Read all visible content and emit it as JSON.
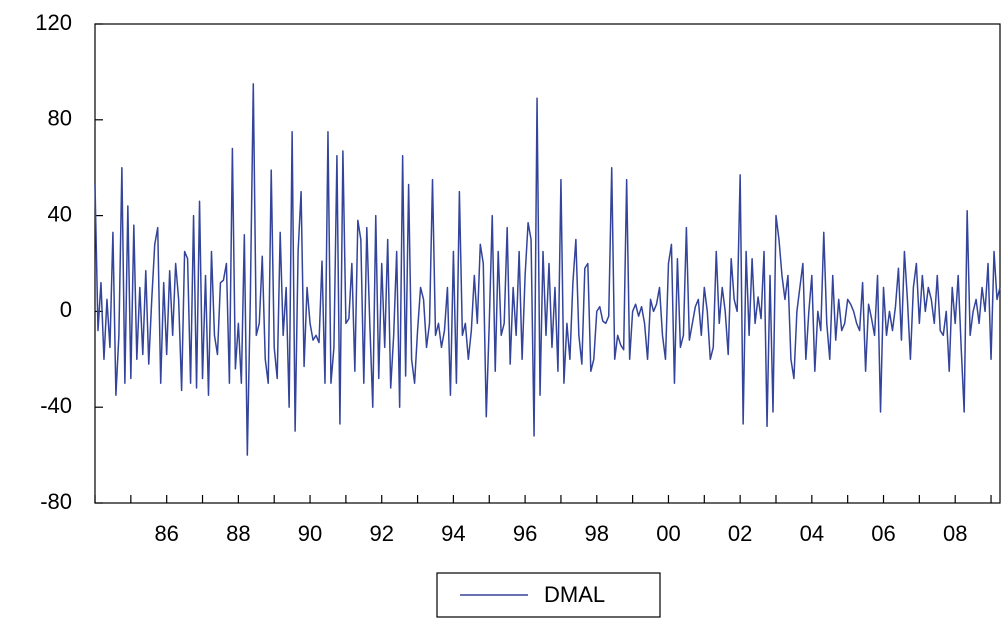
{
  "chart_data": {
    "type": "line",
    "categories": [
      null,
      null,
      null,
      null,
      null,
      null,
      null,
      null,
      null,
      null,
      null,
      null,
      null,
      null,
      null,
      null,
      null,
      null,
      null,
      null,
      null,
      null,
      null,
      null,
      "86",
      null,
      null,
      null,
      null,
      null,
      null,
      null,
      null,
      null,
      null,
      null,
      null,
      null,
      null,
      null,
      null,
      null,
      null,
      null,
      null,
      null,
      null,
      null,
      "88",
      null,
      null,
      null,
      null,
      null,
      null,
      null,
      null,
      null,
      null,
      null,
      null,
      null,
      null,
      null,
      null,
      null,
      null,
      null,
      null,
      null,
      null,
      null,
      "90",
      null,
      null,
      null,
      null,
      null,
      null,
      null,
      null,
      null,
      null,
      null,
      null,
      null,
      null,
      null,
      null,
      null,
      null,
      null,
      null,
      null,
      null,
      null,
      "92",
      null,
      null,
      null,
      null,
      null,
      null,
      null,
      null,
      null,
      null,
      null,
      null,
      null,
      null,
      null,
      null,
      null,
      null,
      null,
      null,
      null,
      null,
      null,
      "94",
      null,
      null,
      null,
      null,
      null,
      null,
      null,
      null,
      null,
      null,
      null,
      null,
      null,
      null,
      null,
      null,
      null,
      null,
      null,
      null,
      null,
      null,
      null,
      "96",
      null,
      null,
      null,
      null,
      null,
      null,
      null,
      null,
      null,
      null,
      null,
      null,
      null,
      null,
      null,
      null,
      null,
      null,
      null,
      null,
      null,
      null,
      null,
      "98",
      null,
      null,
      null,
      null,
      null,
      null,
      null,
      null,
      null,
      null,
      null,
      null,
      null,
      null,
      null,
      null,
      null,
      null,
      null,
      null,
      null,
      null,
      null,
      "00",
      null,
      null,
      null,
      null,
      null,
      null,
      null,
      null,
      null,
      null,
      null,
      null,
      null,
      null,
      null,
      null,
      null,
      null,
      null,
      null,
      null,
      null,
      null,
      "02",
      null,
      null,
      null,
      null,
      null,
      null,
      null,
      null,
      null,
      null,
      null,
      null,
      null,
      null,
      null,
      null,
      null,
      null,
      null,
      null,
      null,
      null,
      null,
      "04",
      null,
      null,
      null,
      null,
      null,
      null,
      null,
      null,
      null,
      null,
      null,
      null,
      null,
      null,
      null,
      null,
      null,
      null,
      null,
      null,
      null,
      null,
      null,
      "06",
      null,
      null,
      null,
      null,
      null,
      null,
      null,
      null,
      null,
      null,
      null,
      null,
      null,
      null,
      null,
      null,
      null,
      null,
      null,
      null,
      null,
      null,
      null,
      "08",
      null,
      null,
      null,
      null,
      null,
      null,
      null,
      null,
      null,
      null,
      null,
      null,
      null,
      null,
      null
    ],
    "series": [
      {
        "name": "DMAL",
        "color": "#33449a",
        "values": [
          53,
          -8,
          12,
          -20,
          5,
          -15,
          33,
          -35,
          -10,
          60,
          -30,
          44,
          -28,
          36,
          -20,
          10,
          -18,
          17,
          -22,
          5,
          28,
          35,
          -30,
          12,
          -18,
          17,
          -10,
          20,
          5,
          -33,
          25,
          22,
          -30,
          40,
          -32,
          46,
          -28,
          15,
          -35,
          25,
          -10,
          -18,
          12,
          13,
          20,
          -30,
          68,
          -24,
          -5,
          -30,
          32,
          -60,
          5,
          95,
          -10,
          -5,
          23,
          -20,
          -30,
          59,
          -15,
          -28,
          33,
          -10,
          10,
          -40,
          75,
          -50,
          25,
          50,
          -23,
          10,
          -5,
          -12,
          -10,
          -13,
          21,
          -30,
          75,
          -30,
          -15,
          65,
          -47,
          67,
          -5,
          -3,
          20,
          -25,
          38,
          30,
          -30,
          35,
          -5,
          -40,
          40,
          -28,
          20,
          -15,
          30,
          -32,
          -10,
          25,
          -40,
          65,
          -27,
          53,
          -20,
          -30,
          -8,
          10,
          5,
          -15,
          -5,
          55,
          -10,
          -5,
          -15,
          -8,
          10,
          -35,
          25,
          -30,
          50,
          -10,
          -5,
          -20,
          -8,
          15,
          -5,
          28,
          20,
          -44,
          -5,
          40,
          -25,
          25,
          -10,
          -5,
          35,
          -22,
          10,
          -10,
          25,
          -20,
          15,
          37,
          30,
          -52,
          89,
          -35,
          25,
          -10,
          20,
          -15,
          10,
          -25,
          55,
          -30,
          -5,
          -20,
          12,
          30,
          -10,
          -22,
          18,
          20,
          -25,
          -20,
          0,
          2,
          -4,
          -5,
          -2,
          60,
          -20,
          -10,
          -14,
          -16,
          55,
          -20,
          0,
          3,
          -2,
          2,
          -5,
          -20,
          5,
          0,
          3,
          10,
          -10,
          -20,
          20,
          28,
          -30,
          22,
          -15,
          -10,
          35,
          -12,
          -5,
          2,
          5,
          -10,
          10,
          0,
          -20,
          -15,
          25,
          -5,
          10,
          0,
          -18,
          22,
          5,
          0,
          57,
          -47,
          25,
          -10,
          22,
          -5,
          6,
          -3,
          25,
          -48,
          15,
          -42,
          40,
          30,
          15,
          5,
          15,
          -20,
          -28,
          0,
          10,
          20,
          -20,
          0,
          15,
          -25,
          0,
          -8,
          33,
          -5,
          -20,
          15,
          -12,
          5,
          -8,
          -5,
          5,
          3,
          0,
          -5,
          -8,
          12,
          -25,
          3,
          -3,
          -10,
          15,
          -42,
          10,
          -10,
          0,
          -8,
          2,
          18,
          -12,
          25,
          5,
          -20,
          10,
          20,
          -5,
          15,
          0,
          10,
          5,
          -5,
          15,
          -8,
          -10,
          0,
          -25,
          10,
          -5,
          15,
          -15,
          -42,
          42,
          -10,
          0,
          5,
          -5,
          10,
          0,
          20,
          -20,
          25,
          5,
          10
        ]
      }
    ],
    "ylim": [
      -80,
      120
    ],
    "yticks": [
      -80,
      -40,
      0,
      40,
      80,
      120
    ],
    "legend": "bottom"
  }
}
